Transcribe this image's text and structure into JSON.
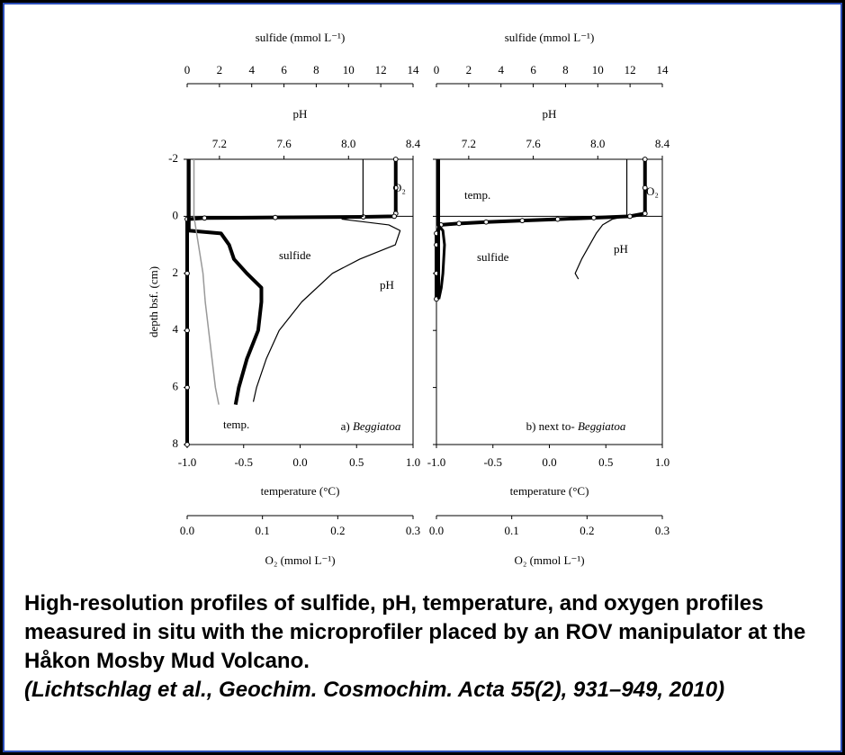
{
  "chart_data": {
    "type": "line",
    "ylabel": "depth bsf. (cm)",
    "ylim": [
      -2,
      8
    ],
    "yticks": [
      -2,
      0,
      2,
      4,
      6,
      8
    ],
    "panels": [
      {
        "label": "a)",
        "label_species": "Beggiatoa",
        "axes": {
          "sulfide": {
            "label": "sulfide (mmol L⁻¹)",
            "lim": [
              0,
              14
            ],
            "ticks": [
              0,
              2,
              4,
              6,
              8,
              10,
              12,
              14
            ]
          },
          "pH": {
            "label": "pH",
            "lim": [
              7.0,
              8.4
            ],
            "ticks": [
              7.2,
              7.6,
              {
                "value": 8,
                "label": "8.0"
              },
              8.4
            ]
          },
          "temperature": {
            "label": "temperature (°C)",
            "lim": [
              -1,
              1
            ],
            "ticks": [
              {
                "value": -1,
                "label": "-1.0"
              },
              {
                "value": -0.5,
                "label": "-0.5"
              },
              {
                "value": 0,
                "label": "0.0"
              },
              {
                "value": 0.5,
                "label": "0.5"
              },
              {
                "value": 1,
                "label": "1.0"
              }
            ]
          },
          "O2": {
            "label": "O₂ (mmol L⁻¹)",
            "lim": [
              0,
              0.3
            ],
            "ticks": [
              {
                "value": 0,
                "label": "0.0"
              },
              0.1,
              0.2,
              0.3
            ]
          }
        },
        "series": [
          {
            "name": "O₂",
            "axis": "O2",
            "color": "#000",
            "line_width": 4,
            "markers": true,
            "depth": [
              -2,
              -1,
              -0.1,
              0,
              0.02,
              0.04,
              0.06,
              0.1,
              2,
              4,
              6,
              8
            ],
            "values": [
              0.277,
              0.277,
              0.277,
              0.275,
              0.234,
              0.117,
              0.023,
              0,
              0,
              0,
              0,
              0
            ]
          },
          {
            "name": "sulfide",
            "axis": "sulfide",
            "color": "#000",
            "line_width": 4,
            "markers": false,
            "depth": [
              -2,
              0,
              0.5,
              0.6,
              1,
              1.5,
              2,
              2.5,
              3,
              4,
              5,
              6,
              6.6
            ],
            "values": [
              0.1,
              0.1,
              0.1,
              2.1,
              2.6,
              2.9,
              3.7,
              4.6,
              4.6,
              4.4,
              3.7,
              3.2,
              3.0
            ]
          },
          {
            "name": "pH",
            "axis": "pH",
            "color": "#000",
            "line_width": 1.2,
            "markers": false,
            "depth": [
              -2,
              0,
              0.1,
              0.3,
              0.5,
              1,
              1.5,
              2,
              3,
              4,
              5,
              6,
              6.5
            ],
            "values": [
              8.09,
              8.09,
              7.96,
              8.25,
              8.32,
              8.29,
              8.07,
              7.9,
              7.71,
              7.57,
              7.49,
              7.43,
              7.41
            ]
          },
          {
            "name": "temp.",
            "axis": "temperature",
            "color": "#999",
            "line_width": 1.5,
            "markers": false,
            "depth": [
              -2,
              0,
              1,
              2,
              3,
              4,
              5,
              6,
              6.6
            ],
            "values": [
              -0.94,
              -0.94,
              -0.9,
              -0.86,
              -0.84,
              -0.81,
              -0.78,
              -0.75,
              -0.72
            ]
          }
        ]
      },
      {
        "label": "b) next to-",
        "label_species": "Beggiatoa",
        "axes": {
          "sulfide": {
            "label": "sulfide (mmol L⁻¹)",
            "lim": [
              0,
              14
            ],
            "ticks": [
              0,
              2,
              4,
              6,
              8,
              10,
              12,
              14
            ]
          },
          "pH": {
            "label": "pH",
            "lim": [
              7.0,
              8.4
            ],
            "ticks": [
              7.2,
              7.6,
              {
                "value": 8,
                "label": "8.0"
              },
              8.4
            ]
          },
          "temperature": {
            "label": "temperature (°C)",
            "lim": [
              -1,
              1
            ],
            "ticks": [
              {
                "value": -1,
                "label": "-1.0"
              },
              {
                "value": -0.5,
                "label": "-0.5"
              },
              {
                "value": 0,
                "label": "0.0"
              },
              {
                "value": 0.5,
                "label": "0.5"
              },
              {
                "value": 1,
                "label": "1.0"
              }
            ]
          },
          "O2": {
            "label": "O₂ (mmol L⁻¹)",
            "lim": [
              0,
              0.3
            ],
            "ticks": [
              {
                "value": 0,
                "label": "0.0"
              },
              0.1,
              0.2,
              0.3
            ]
          }
        },
        "series": [
          {
            "name": "O₂",
            "axis": "O2",
            "color": "#000",
            "line_width": 4,
            "markers": true,
            "depth": [
              -2,
              -1,
              -0.1,
              0,
              0.05,
              0.1,
              0.15,
              0.2,
              0.25,
              0.3,
              0.6,
              1,
              2,
              2.9
            ],
            "values": [
              0.277,
              0.277,
              0.277,
              0.257,
              0.209,
              0.161,
              0.114,
              0.066,
              0.03,
              0.006,
              0,
              0,
              0,
              0
            ]
          },
          {
            "name": "sulfide",
            "axis": "sulfide",
            "color": "#000",
            "line_width": 3,
            "markers": false,
            "depth": [
              -2,
              0,
              0.3,
              0.5,
              1,
              1.5,
              2,
              2.5,
              2.9
            ],
            "values": [
              0.06,
              0.06,
              0.1,
              0.4,
              0.5,
              0.45,
              0.4,
              0.3,
              0.15
            ]
          },
          {
            "name": "pH",
            "axis": "pH",
            "color": "#000",
            "line_width": 1.2,
            "markers": false,
            "depth": [
              -2,
              0,
              0.1,
              0.3,
              0.6,
              1,
              1.5,
              2,
              2.2
            ],
            "values": [
              8.18,
              8.18,
              8.09,
              8.03,
              7.99,
              7.95,
              7.9,
              7.86,
              7.88
            ]
          },
          {
            "name": "temp.",
            "axis": "temperature",
            "color": "#000",
            "line_width": 3,
            "markers": false,
            "depth": [
              -2,
              0,
              1,
              2,
              2.9
            ],
            "values": [
              -0.98,
              -0.98,
              -0.98,
              -0.98,
              -0.98
            ]
          }
        ]
      }
    ]
  },
  "caption": "High-resolution profiles of sulfide, pH, temperature, and oxygen profiles measured in situ with the microprofiler placed by an ROV manipulator at the Håkon Mosby Mud Volcano.",
  "citation": "(Lichtschlag et al., Geochim. Cosmochim. Acta 55(2), 931–949, 2010)"
}
